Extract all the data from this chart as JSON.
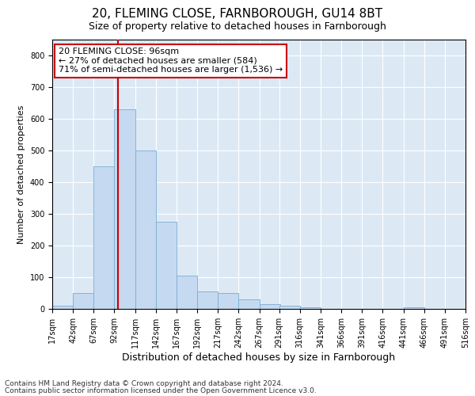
{
  "title1": "20, FLEMING CLOSE, FARNBOROUGH, GU14 8BT",
  "title2": "Size of property relative to detached houses in Farnborough",
  "xlabel": "Distribution of detached houses by size in Farnborough",
  "ylabel": "Number of detached properties",
  "footnote1": "Contains HM Land Registry data © Crown copyright and database right 2024.",
  "footnote2": "Contains public sector information licensed under the Open Government Licence v3.0.",
  "annotation_title": "20 FLEMING CLOSE: 96sqm",
  "annotation_line1": "← 27% of detached houses are smaller (584)",
  "annotation_line2": "71% of semi-detached houses are larger (1,536) →",
  "bar_color": "#c5d9f0",
  "bar_edge_color": "#7aadd4",
  "redline_color": "#cc0000",
  "annotation_box_color": "#ffffff",
  "annotation_box_edge": "#cc0000",
  "plot_bg_color": "#dce9f5",
  "fig_bg_color": "#ffffff",
  "ylim": [
    0,
    850
  ],
  "yticks": [
    0,
    100,
    200,
    300,
    400,
    500,
    600,
    700,
    800
  ],
  "bin_edges": [
    17,
    42,
    67,
    92,
    117,
    142,
    167,
    192,
    217,
    242,
    267,
    291,
    316,
    341,
    366,
    391,
    416,
    441,
    466,
    491,
    516
  ],
  "bar_heights": [
    10,
    50,
    450,
    630,
    500,
    275,
    105,
    55,
    50,
    30,
    15,
    10,
    5,
    0,
    0,
    0,
    0,
    5,
    0,
    0
  ],
  "red_line_x": 96,
  "title1_fontsize": 11,
  "title2_fontsize": 9,
  "xlabel_fontsize": 9,
  "ylabel_fontsize": 8,
  "tick_fontsize": 7,
  "annotation_fontsize": 8,
  "footnote_fontsize": 6.5
}
